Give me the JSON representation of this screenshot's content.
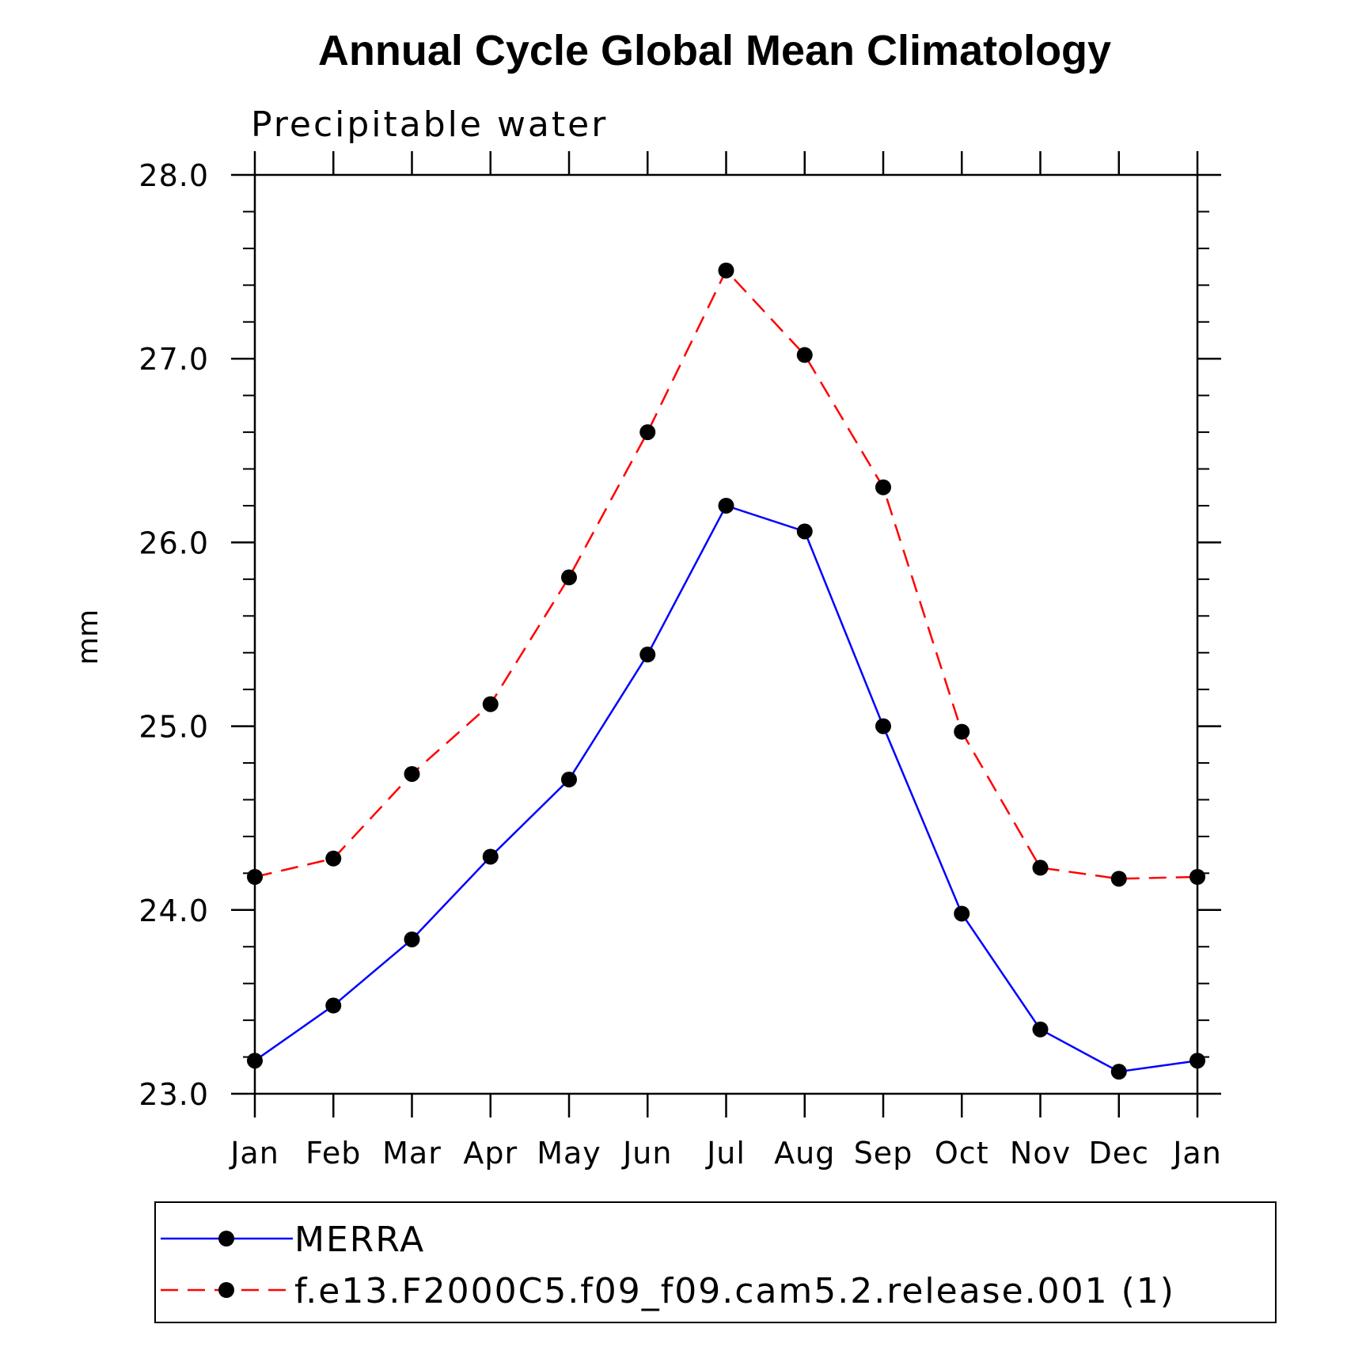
{
  "chart_data": {
    "type": "line",
    "title": "Annual Cycle Global Mean Climatology",
    "subtitle": "Precipitable water",
    "xlabel": "",
    "ylabel": "mm",
    "categories": [
      "Jan",
      "Feb",
      "Mar",
      "Apr",
      "May",
      "Jun",
      "Jul",
      "Aug",
      "Sep",
      "Oct",
      "Nov",
      "Dec",
      "Jan"
    ],
    "ylim": [
      23.0,
      28.0
    ],
    "yticks": [
      "23.0",
      "24.0",
      "25.0",
      "26.0",
      "27.0",
      "28.0"
    ],
    "grid": false,
    "legend_placement": "bottom",
    "series": [
      {
        "name": "MERRA",
        "color": "#0000ff",
        "line_style": "solid",
        "marker": "filled-circle",
        "values": [
          23.18,
          23.48,
          23.84,
          24.29,
          24.71,
          25.39,
          26.2,
          26.06,
          25.0,
          23.98,
          23.35,
          23.12,
          23.18
        ]
      },
      {
        "name": "f.e13.F2000C5.f09_f09.cam5.2.release.001 (1)",
        "color": "#ff0000",
        "line_style": "dashed",
        "marker": "filled-circle",
        "values": [
          24.18,
          24.28,
          24.74,
          25.12,
          25.81,
          26.6,
          27.48,
          27.02,
          26.3,
          24.97,
          24.23,
          24.17,
          24.18
        ]
      }
    ]
  }
}
